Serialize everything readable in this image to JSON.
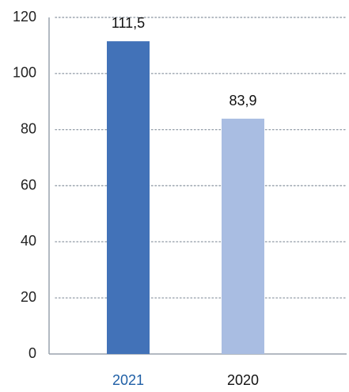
{
  "chart_data": {
    "type": "bar",
    "title": "",
    "xlabel": "",
    "ylabel": "",
    "ylim": [
      0,
      120
    ],
    "yticks": [
      0,
      20,
      40,
      60,
      80,
      100,
      120
    ],
    "ytick_labels": [
      "0",
      "20",
      "40",
      "60",
      "80",
      "100",
      "120"
    ],
    "grid": true,
    "grid_style": "dotted",
    "categories": [
      "2021",
      "2020"
    ],
    "values": [
      111.5,
      83.9
    ],
    "value_labels": [
      "111,5",
      "83,9"
    ],
    "bar_colors": [
      "#4272b8",
      "#a9bde2"
    ],
    "category_label_colors": [
      "#1f5fa6",
      "#111111"
    ],
    "axis_color": "#9aa3ad",
    "grid_color": "#9aa3ad"
  }
}
